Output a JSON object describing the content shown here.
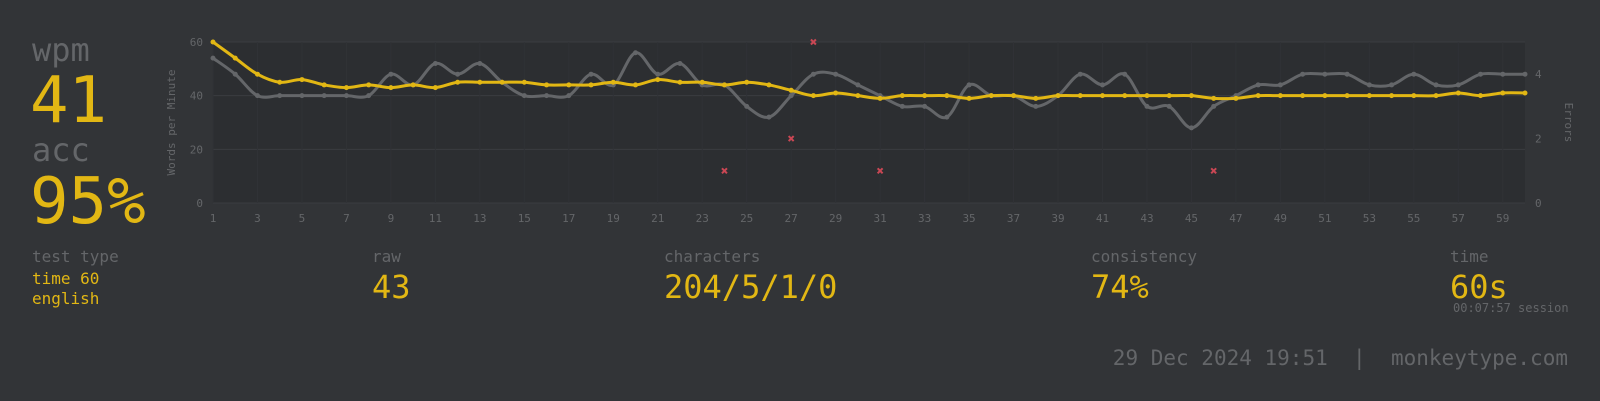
{
  "wpm": {
    "label": "wpm",
    "value": "41"
  },
  "acc": {
    "label": "acc",
    "value": "95%"
  },
  "stats": {
    "test_type": {
      "label": "test type",
      "line1": "time 60",
      "line2": "english"
    },
    "raw": {
      "label": "raw",
      "value": "43"
    },
    "characters": {
      "label": "characters",
      "value": "204/5/1/0"
    },
    "consistency": {
      "label": "consistency",
      "value": "74%"
    },
    "time": {
      "label": "time",
      "value": "60s",
      "session": "00:07:57 session"
    }
  },
  "footer": {
    "datetime": "29 Dec 2024 19:51",
    "separator": "|",
    "site": "monkeytype.com"
  },
  "colors": {
    "background": "#323437",
    "main": "#e2b714",
    "sub": "#646669",
    "error": "#ca4754",
    "plot_bg": "#2c2e31"
  },
  "chart_data": {
    "type": "line",
    "x": [
      1,
      2,
      3,
      4,
      5,
      6,
      7,
      8,
      9,
      10,
      11,
      12,
      13,
      14,
      15,
      16,
      17,
      18,
      19,
      20,
      21,
      22,
      23,
      24,
      25,
      26,
      27,
      28,
      29,
      30,
      31,
      32,
      33,
      34,
      35,
      36,
      37,
      38,
      39,
      40,
      41,
      42,
      43,
      44,
      45,
      46,
      47,
      48,
      49,
      50,
      51,
      52,
      53,
      54,
      55,
      56,
      57,
      58,
      59,
      60
    ],
    "xticks": [
      1,
      3,
      5,
      7,
      9,
      11,
      13,
      15,
      17,
      19,
      21,
      23,
      25,
      27,
      29,
      31,
      33,
      35,
      37,
      39,
      41,
      43,
      45,
      47,
      49,
      51,
      53,
      55,
      57,
      59
    ],
    "xlim": [
      1,
      60
    ],
    "ylabel": "Words per Minute",
    "ylim": [
      0,
      60
    ],
    "yticks": [
      0,
      20,
      40,
      60
    ],
    "y2label": "Errors",
    "y2lim": [
      0,
      5
    ],
    "y2ticks": [
      0,
      2,
      4
    ],
    "grid": true,
    "series": [
      {
        "role": "wpm",
        "color": "#e2b714",
        "values": [
          60,
          54,
          48,
          45,
          46,
          44,
          43,
          44,
          43,
          44,
          43,
          45,
          45,
          45,
          45,
          44,
          44,
          44,
          45,
          44,
          46,
          45,
          45,
          44,
          45,
          44,
          42,
          40,
          41,
          40,
          39,
          40,
          40,
          40,
          39,
          40,
          40,
          39,
          40,
          40,
          40,
          40,
          40,
          40,
          40,
          39,
          39,
          40,
          40,
          40,
          40,
          40,
          40,
          40,
          40,
          40,
          41,
          40,
          41,
          41
        ]
      },
      {
        "role": "raw",
        "color": "#646669",
        "values": [
          54,
          48,
          40,
          40,
          40,
          40,
          40,
          40,
          48,
          44,
          52,
          48,
          52,
          45,
          40,
          40,
          40,
          48,
          44,
          56,
          48,
          52,
          44,
          44,
          36,
          32,
          40,
          48,
          48,
          44,
          40,
          36,
          36,
          32,
          44,
          40,
          40,
          36,
          40,
          48,
          44,
          48,
          36,
          36,
          28,
          36,
          40,
          44,
          44,
          48,
          48,
          48,
          44,
          44,
          48,
          44,
          44,
          48,
          48,
          48
        ]
      },
      {
        "role": "errors",
        "color": "#ca4754",
        "points": [
          {
            "x": 24,
            "y": 1
          },
          {
            "x": 27,
            "y": 2
          },
          {
            "x": 28,
            "y": 5
          },
          {
            "x": 31,
            "y": 1
          },
          {
            "x": 46,
            "y": 1
          }
        ]
      }
    ]
  }
}
